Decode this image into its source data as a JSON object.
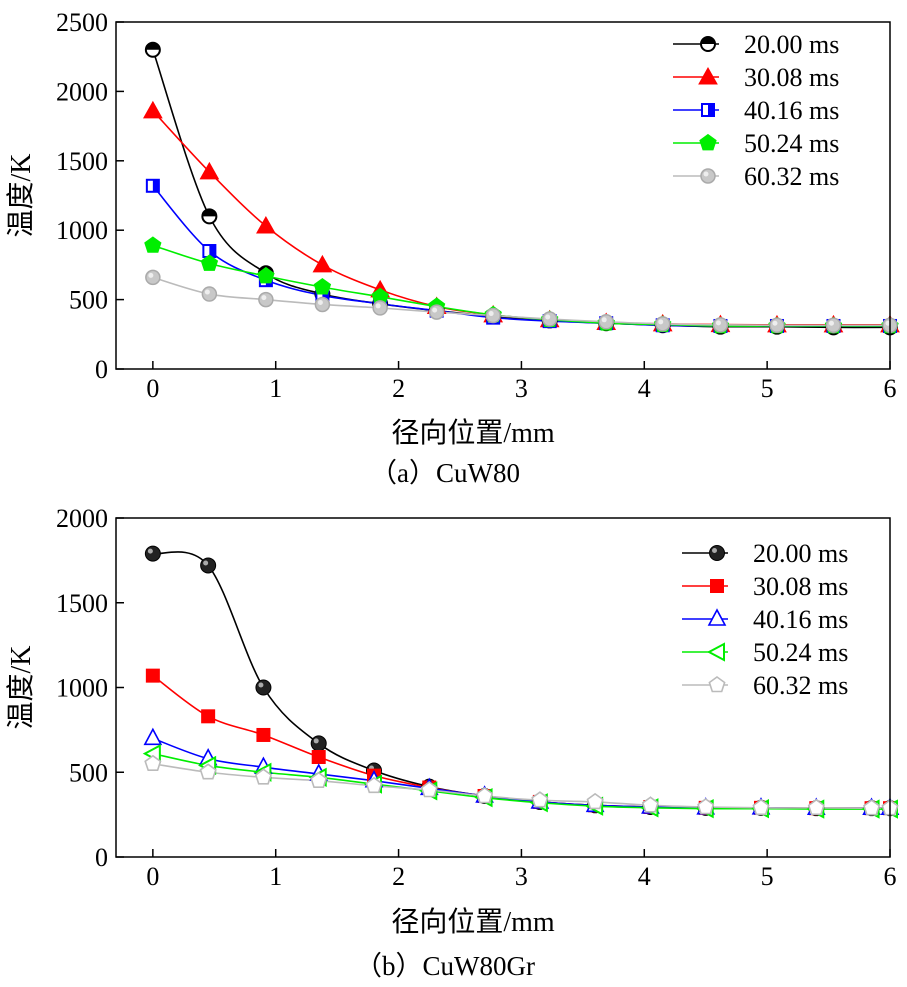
{
  "chart_data": [
    {
      "type": "line",
      "caption": "（a）CuW80",
      "xlabel": "径向位置/mm",
      "ylabel": "温度/K",
      "xlim": [
        -0.3,
        6
      ],
      "ylim": [
        0,
        2500
      ],
      "xticks": [
        0,
        1,
        2,
        3,
        4,
        5,
        6
      ],
      "yticks": [
        0,
        500,
        1000,
        1500,
        2000,
        2500
      ],
      "legend_position": "top-right",
      "series": [
        {
          "name": "20.00 ms",
          "color": "#000000",
          "marker": "circle-half",
          "x": [
            0,
            0.46,
            0.92,
            1.38,
            1.85,
            2.31,
            2.77,
            3.23,
            3.69,
            4.15,
            4.62,
            5.08,
            5.54,
            6.0
          ],
          "y": [
            2300,
            1100,
            690,
            540,
            470,
            420,
            380,
            350,
            330,
            315,
            305,
            305,
            300,
            300
          ]
        },
        {
          "name": "30.08 ms",
          "color": "#ff0000",
          "marker": "triangle",
          "x": [
            0,
            0.46,
            0.92,
            1.38,
            1.85,
            2.31,
            2.77,
            3.23,
            3.69,
            4.15,
            4.62,
            5.08,
            5.54,
            6.0
          ],
          "y": [
            1860,
            1420,
            1030,
            750,
            570,
            450,
            390,
            355,
            335,
            325,
            320,
            318,
            318,
            318
          ]
        },
        {
          "name": "40.16 ms",
          "color": "#0000ff",
          "marker": "square-half",
          "x": [
            0,
            0.46,
            0.92,
            1.38,
            1.85,
            2.31,
            2.77,
            3.23,
            3.69,
            4.15,
            4.62,
            5.08,
            5.54,
            6.0
          ],
          "y": [
            1320,
            850,
            640,
            530,
            470,
            420,
            370,
            345,
            330,
            315,
            310,
            310,
            310,
            310
          ]
        },
        {
          "name": "50.24 ms",
          "color": "#00ee00",
          "marker": "pentagon",
          "x": [
            0,
            0.46,
            0.92,
            1.38,
            1.85,
            2.31,
            2.77,
            3.23,
            3.69,
            4.15,
            4.62,
            5.08,
            5.54,
            6.0
          ],
          "y": [
            890,
            760,
            670,
            590,
            520,
            450,
            390,
            355,
            330,
            320,
            310,
            310,
            310,
            310
          ]
        },
        {
          "name": "60.32 ms",
          "color": "#bbbbbb",
          "marker": "circle-gray",
          "x": [
            0,
            0.46,
            0.92,
            1.38,
            1.85,
            2.31,
            2.77,
            3.23,
            3.69,
            4.15,
            4.62,
            5.08,
            5.54,
            6.0
          ],
          "y": [
            660,
            540,
            500,
            465,
            440,
            410,
            385,
            360,
            340,
            325,
            318,
            315,
            315,
            315
          ]
        }
      ]
    },
    {
      "type": "line",
      "caption": "（b）CuW80Gr",
      "xlabel": "径向位置/mm",
      "ylabel": "温度/K",
      "xlim": [
        -0.3,
        6
      ],
      "ylim": [
        0,
        2000
      ],
      "xticks": [
        0,
        1,
        2,
        3,
        4,
        5,
        6
      ],
      "yticks": [
        0,
        500,
        1000,
        1500,
        2000
      ],
      "legend_position": "top-right",
      "series": [
        {
          "name": "20.00 ms",
          "color": "#000000",
          "marker": "sphere",
          "x": [
            0,
            0.45,
            0.9,
            1.35,
            1.8,
            2.25,
            2.7,
            3.15,
            3.6,
            4.05,
            4.5,
            4.95,
            5.4,
            5.85,
            6.0
          ],
          "y": [
            1790,
            1720,
            1000,
            670,
            510,
            415,
            360,
            325,
            305,
            295,
            290,
            290,
            288,
            288,
            288
          ]
        },
        {
          "name": "30.08 ms",
          "color": "#ff0000",
          "marker": "square",
          "x": [
            0,
            0.45,
            0.9,
            1.35,
            1.8,
            2.25,
            2.7,
            3.15,
            3.6,
            4.05,
            4.5,
            4.95,
            5.4,
            5.85,
            6.0
          ],
          "y": [
            1070,
            830,
            720,
            590,
            480,
            410,
            360,
            325,
            305,
            295,
            290,
            290,
            288,
            288,
            288
          ]
        },
        {
          "name": "40.16 ms",
          "color": "#0000ff",
          "marker": "triangle-open",
          "x": [
            0,
            0.45,
            0.9,
            1.35,
            1.8,
            2.25,
            2.7,
            3.15,
            3.6,
            4.05,
            4.5,
            4.95,
            5.4,
            5.85,
            6.0
          ],
          "y": [
            700,
            580,
            530,
            490,
            450,
            405,
            360,
            325,
            305,
            295,
            290,
            290,
            288,
            288,
            288
          ]
        },
        {
          "name": "50.24 ms",
          "color": "#00ee00",
          "marker": "triangle-left",
          "x": [
            0,
            0.45,
            0.9,
            1.35,
            1.8,
            2.25,
            2.7,
            3.15,
            3.6,
            4.05,
            4.5,
            4.95,
            5.4,
            5.85,
            6.0
          ],
          "y": [
            610,
            540,
            500,
            470,
            430,
            390,
            350,
            320,
            300,
            290,
            285,
            285,
            283,
            283,
            283
          ]
        },
        {
          "name": "60.32 ms",
          "color": "#bbbbbb",
          "marker": "pentagon-open",
          "x": [
            0,
            0.45,
            0.9,
            1.35,
            1.8,
            2.25,
            2.7,
            3.15,
            3.6,
            4.05,
            4.5,
            4.95,
            5.4,
            5.85,
            6.0
          ],
          "y": [
            550,
            500,
            470,
            450,
            420,
            395,
            360,
            335,
            325,
            305,
            295,
            290,
            290,
            288,
            288
          ]
        }
      ]
    }
  ]
}
